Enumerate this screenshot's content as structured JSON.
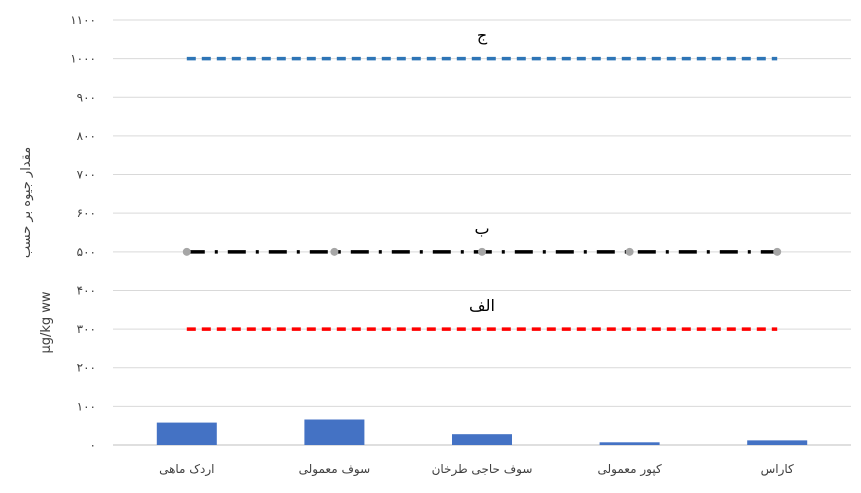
{
  "chart_data": {
    "type": "bar",
    "ylabel_line1": "مقدار جیوه بر حسب",
    "ylabel_line2": "µg/kg ww",
    "ylim": [
      0,
      1100
    ],
    "y_ticks": [
      {
        "value": 0,
        "label": "۰"
      },
      {
        "value": 100,
        "label": "۱۰۰"
      },
      {
        "value": 200,
        "label": "۲۰۰"
      },
      {
        "value": 300,
        "label": "۳۰۰"
      },
      {
        "value": 400,
        "label": "۴۰۰"
      },
      {
        "value": 500,
        "label": "۵۰۰"
      },
      {
        "value": 600,
        "label": "۶۰۰"
      },
      {
        "value": 700,
        "label": "۷۰۰"
      },
      {
        "value": 800,
        "label": "۸۰۰"
      },
      {
        "value": 900,
        "label": "۹۰۰"
      },
      {
        "value": 1000,
        "label": "۱۰۰۰"
      },
      {
        "value": 1100,
        "label": "۱۱۰۰"
      }
    ],
    "grid": true,
    "categories": [
      "اردک ماهی",
      "سوف معمولی",
      "سوف حاجی طرخان",
      "کپور معمولی",
      "کاراس"
    ],
    "values": [
      58,
      66,
      28,
      7,
      12
    ],
    "bar_color": "#4472c4",
    "reference_lines": [
      {
        "label": "ج",
        "value": 1000,
        "color": "#2e75b6",
        "style": "dash"
      },
      {
        "label": "ب",
        "value": 500,
        "color": "#000000",
        "style": "dash-dot",
        "markers": true
      },
      {
        "label": "الف",
        "value": 300,
        "color": "#ff0000",
        "style": "dash"
      }
    ]
  }
}
